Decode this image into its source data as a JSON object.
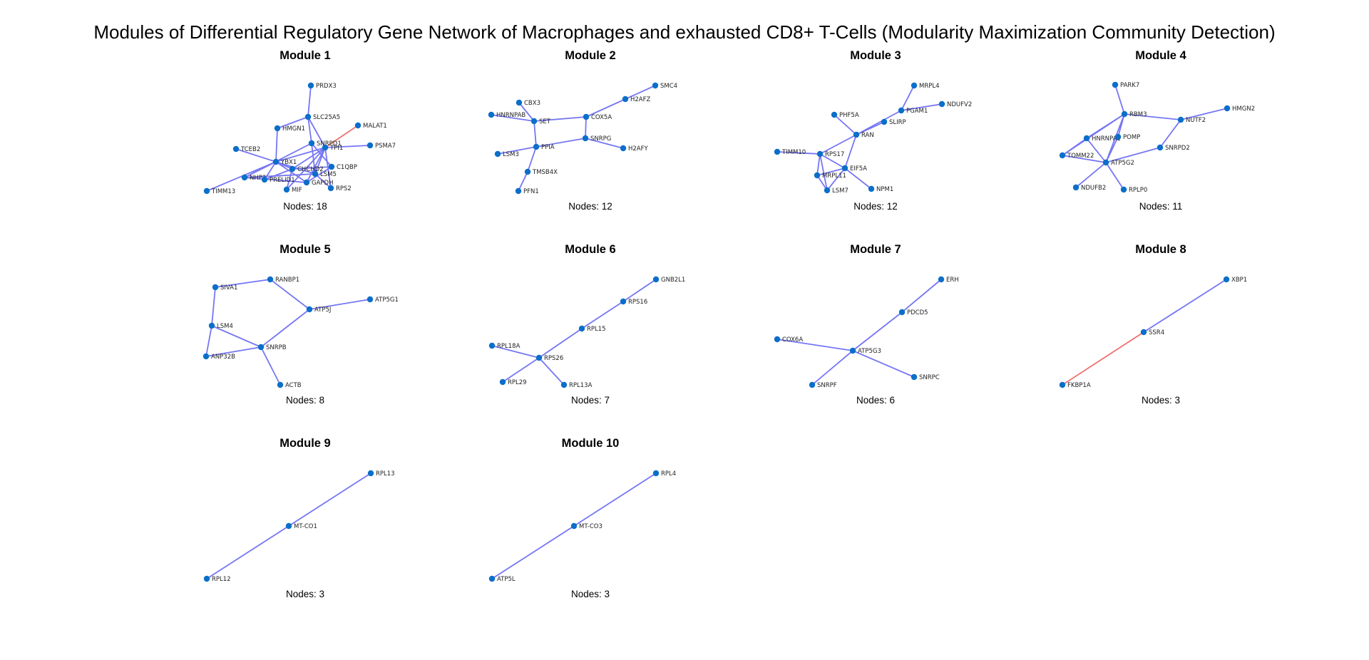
{
  "title": "Modules of Differential Regulatory Gene Network of Macrophages and exhausted CD8+ T-Cells (Modularity Maximization Community Detection)",
  "colors": {
    "node": "#0b6fc9",
    "edge_positive": "#7676f4",
    "edge_negative": "#f07070"
  },
  "modules": [
    {
      "title": "Module 1",
      "nodes_label": "Nodes: 18",
      "nodes": [
        "PRDX3",
        "SLC25A5",
        "MALAT1",
        "HMGN1",
        "SNRPD1",
        "TPI1",
        "PSMA7",
        "TCEB2",
        "YBX1",
        "C1QBP",
        "CHCHD2",
        "LSM5",
        "NHP2",
        "PRELID1",
        "GAPDH",
        "TIMM13",
        "MIF",
        "RPS2"
      ],
      "edges": [
        {
          "source": "PRDX3",
          "target": "SLC25A5",
          "sign": "positive"
        },
        {
          "source": "SLC25A5",
          "target": "HMGN1",
          "sign": "positive"
        },
        {
          "source": "SLC25A5",
          "target": "SNRPD1",
          "sign": "positive"
        },
        {
          "source": "SLC25A5",
          "target": "TPI1",
          "sign": "positive"
        },
        {
          "source": "MALAT1",
          "target": "TPI1",
          "sign": "negative"
        },
        {
          "source": "HMGN1",
          "target": "YBX1",
          "sign": "positive"
        },
        {
          "source": "TPI1",
          "target": "PSMA7",
          "sign": "positive"
        },
        {
          "source": "TPI1",
          "target": "YBX1",
          "sign": "positive"
        },
        {
          "source": "TPI1",
          "target": "CHCHD2",
          "sign": "positive"
        },
        {
          "source": "TPI1",
          "target": "GAPDH",
          "sign": "positive"
        },
        {
          "source": "TPI1",
          "target": "MIF",
          "sign": "positive"
        },
        {
          "source": "TPI1",
          "target": "RPS2",
          "sign": "positive"
        },
        {
          "source": "TPI1",
          "target": "LSM5",
          "sign": "positive"
        },
        {
          "source": "SNRPD1",
          "target": "NHP2",
          "sign": "positive"
        },
        {
          "source": "SNRPD1",
          "target": "LSM5",
          "sign": "positive"
        },
        {
          "source": "SNRPD1",
          "target": "C1QBP",
          "sign": "positive"
        },
        {
          "source": "TCEB2",
          "target": "YBX1",
          "sign": "positive"
        },
        {
          "source": "YBX1",
          "target": "CHCHD2",
          "sign": "positive"
        },
        {
          "source": "YBX1",
          "target": "NHP2",
          "sign": "positive"
        },
        {
          "source": "YBX1",
          "target": "PRELID1",
          "sign": "positive"
        },
        {
          "source": "YBX1",
          "target": "TIMM13",
          "sign": "positive"
        },
        {
          "source": "YBX1",
          "target": "LSM5",
          "sign": "positive"
        },
        {
          "source": "YBX1",
          "target": "GAPDH",
          "sign": "positive"
        },
        {
          "source": "CHCHD2",
          "target": "C1QBP",
          "sign": "positive"
        },
        {
          "source": "CHCHD2",
          "target": "MIF",
          "sign": "positive"
        },
        {
          "source": "CHCHD2",
          "target": "PRELID1",
          "sign": "positive"
        },
        {
          "source": "C1QBP",
          "target": "GAPDH",
          "sign": "positive"
        },
        {
          "source": "LSM5",
          "target": "NHP2",
          "sign": "positive"
        },
        {
          "source": "LSM5",
          "target": "RPS2",
          "sign": "positive"
        },
        {
          "source": "GAPDH",
          "target": "NHP2",
          "sign": "positive"
        }
      ]
    },
    {
      "title": "Module 2",
      "nodes_label": "Nodes: 12",
      "nodes": [
        "SMC4",
        "H2AFZ",
        "CBX3",
        "HNRNPAB",
        "SET",
        "COX5A",
        "SNRPG",
        "PPIA",
        "H2AFY",
        "LSM3",
        "TMSB4X",
        "PFN1"
      ],
      "edges": [
        {
          "source": "SMC4",
          "target": "H2AFZ",
          "sign": "positive"
        },
        {
          "source": "H2AFZ",
          "target": "COX5A",
          "sign": "positive"
        },
        {
          "source": "CBX3",
          "target": "SET",
          "sign": "positive"
        },
        {
          "source": "HNRNPAB",
          "target": "SET",
          "sign": "positive"
        },
        {
          "source": "SET",
          "target": "COX5A",
          "sign": "positive"
        },
        {
          "source": "SET",
          "target": "PPIA",
          "sign": "positive"
        },
        {
          "source": "COX5A",
          "target": "SNRPG",
          "sign": "positive"
        },
        {
          "source": "SNRPG",
          "target": "PPIA",
          "sign": "positive"
        },
        {
          "source": "SNRPG",
          "target": "H2AFY",
          "sign": "positive"
        },
        {
          "source": "PPIA",
          "target": "LSM3",
          "sign": "positive"
        },
        {
          "source": "PPIA",
          "target": "TMSB4X",
          "sign": "positive"
        },
        {
          "source": "TMSB4X",
          "target": "PFN1",
          "sign": "positive"
        }
      ]
    },
    {
      "title": "Module 3",
      "nodes_label": "Nodes: 12",
      "nodes": [
        "MRPL4",
        "NDUFV2",
        "PGAM1",
        "PHF5A",
        "SLIRP",
        "RAN",
        "TIMM10",
        "RPS17",
        "EIF5A",
        "MRPL11",
        "LSM7",
        "NPM1"
      ],
      "edges": [
        {
          "source": "MRPL4",
          "target": "PGAM1",
          "sign": "positive"
        },
        {
          "source": "NDUFV2",
          "target": "PGAM1",
          "sign": "positive"
        },
        {
          "source": "PGAM1",
          "target": "RAN",
          "sign": "positive"
        },
        {
          "source": "SLIRP",
          "target": "RAN",
          "sign": "positive"
        },
        {
          "source": "PHF5A",
          "target": "RAN",
          "sign": "positive"
        },
        {
          "source": "RAN",
          "target": "RPS17",
          "sign": "positive"
        },
        {
          "source": "RAN",
          "target": "EIF5A",
          "sign": "positive"
        },
        {
          "source": "TIMM10",
          "target": "RPS17",
          "sign": "positive"
        },
        {
          "source": "RPS17",
          "target": "EIF5A",
          "sign": "positive"
        },
        {
          "source": "RPS17",
          "target": "MRPL11",
          "sign": "positive"
        },
        {
          "source": "RPS17",
          "target": "LSM7",
          "sign": "positive"
        },
        {
          "source": "EIF5A",
          "target": "MRPL11",
          "sign": "positive"
        },
        {
          "source": "EIF5A",
          "target": "LSM7",
          "sign": "positive"
        },
        {
          "source": "EIF5A",
          "target": "NPM1",
          "sign": "positive"
        },
        {
          "source": "MRPL11",
          "target": "LSM7",
          "sign": "positive"
        }
      ]
    },
    {
      "title": "Module 4",
      "nodes_label": "Nodes: 11",
      "nodes": [
        "PARK7",
        "HMGN2",
        "RBM3",
        "NUTF2",
        "HNRNPA1",
        "POMP",
        "TOMM22",
        "SNRPD2",
        "ATP5G2",
        "NDUFB2",
        "RPLP0"
      ],
      "edges": [
        {
          "source": "PARK7",
          "target": "RBM3",
          "sign": "positive"
        },
        {
          "source": "RBM3",
          "target": "NUTF2",
          "sign": "positive"
        },
        {
          "source": "NUTF2",
          "target": "HMGN2",
          "sign": "positive"
        },
        {
          "source": "RBM3",
          "target": "HNRNPA1",
          "sign": "positive"
        },
        {
          "source": "RBM3",
          "target": "POMP",
          "sign": "positive"
        },
        {
          "source": "RBM3",
          "target": "TOMM22",
          "sign": "positive"
        },
        {
          "source": "RBM3",
          "target": "ATP5G2",
          "sign": "positive"
        },
        {
          "source": "NUTF2",
          "target": "SNRPD2",
          "sign": "positive"
        },
        {
          "source": "HNRNPA1",
          "target": "TOMM22",
          "sign": "positive"
        },
        {
          "source": "HNRNPA1",
          "target": "ATP5G2",
          "sign": "positive"
        },
        {
          "source": "POMP",
          "target": "ATP5G2",
          "sign": "positive"
        },
        {
          "source": "TOMM22",
          "target": "ATP5G2",
          "sign": "positive"
        },
        {
          "source": "SNRPD2",
          "target": "ATP5G2",
          "sign": "positive"
        },
        {
          "source": "ATP5G2",
          "target": "NDUFB2",
          "sign": "positive"
        },
        {
          "source": "ATP5G2",
          "target": "RPLP0",
          "sign": "positive"
        }
      ]
    },
    {
      "title": "Module 5",
      "nodes_label": "Nodes: 8",
      "nodes": [
        "SIVA1",
        "RANBP1",
        "ATP5J",
        "ATP5G1",
        "LSM4",
        "SNRPB",
        "ANP32B",
        "ACTB"
      ],
      "edges": [
        {
          "source": "SIVA1",
          "target": "RANBP1",
          "sign": "positive"
        },
        {
          "source": "SIVA1",
          "target": "LSM4",
          "sign": "positive"
        },
        {
          "source": "RANBP1",
          "target": "ATP5J",
          "sign": "positive"
        },
        {
          "source": "ATP5J",
          "target": "ATP5G1",
          "sign": "positive"
        },
        {
          "source": "ATP5J",
          "target": "SNRPB",
          "sign": "positive"
        },
        {
          "source": "LSM4",
          "target": "SNRPB",
          "sign": "positive"
        },
        {
          "source": "LSM4",
          "target": "ANP32B",
          "sign": "positive"
        },
        {
          "source": "ANP32B",
          "target": "SNRPB",
          "sign": "positive"
        },
        {
          "source": "SNRPB",
          "target": "ACTB",
          "sign": "positive"
        }
      ]
    },
    {
      "title": "Module 6",
      "nodes_label": "Nodes: 7",
      "nodes": [
        "GNB2L1",
        "RPS16",
        "RPL15",
        "RPL18A",
        "RPS26",
        "RPL29",
        "RPL13A"
      ],
      "edges": [
        {
          "source": "GNB2L1",
          "target": "RPS16",
          "sign": "positive"
        },
        {
          "source": "RPS16",
          "target": "RPL15",
          "sign": "positive"
        },
        {
          "source": "RPL15",
          "target": "RPS26",
          "sign": "positive"
        },
        {
          "source": "RPL18A",
          "target": "RPS26",
          "sign": "positive"
        },
        {
          "source": "RPS26",
          "target": "RPL29",
          "sign": "positive"
        },
        {
          "source": "RPS26",
          "target": "RPL13A",
          "sign": "positive"
        }
      ]
    },
    {
      "title": "Module 7",
      "nodes_label": "Nodes: 6",
      "nodes": [
        "ERH",
        "PDCD5",
        "COX6A",
        "ATP5G3",
        "SNRPC",
        "SNRPF"
      ],
      "edges": [
        {
          "source": "ERH",
          "target": "PDCD5",
          "sign": "positive"
        },
        {
          "source": "PDCD5",
          "target": "ATP5G3",
          "sign": "positive"
        },
        {
          "source": "COX6A",
          "target": "ATP5G3",
          "sign": "positive"
        },
        {
          "source": "ATP5G3",
          "target": "SNRPC",
          "sign": "positive"
        },
        {
          "source": "ATP5G3",
          "target": "SNRPF",
          "sign": "positive"
        }
      ]
    },
    {
      "title": "Module 8",
      "nodes_label": "Nodes: 3",
      "nodes": [
        "XBP1",
        "SSR4",
        "FKBP1A"
      ],
      "edges": [
        {
          "source": "XBP1",
          "target": "SSR4",
          "sign": "positive"
        },
        {
          "source": "SSR4",
          "target": "FKBP1A",
          "sign": "negative"
        }
      ]
    },
    {
      "title": "Module 9",
      "nodes_label": "Nodes: 3",
      "nodes": [
        "RPL13",
        "MT-CO1",
        "RPL12"
      ],
      "edges": [
        {
          "source": "RPL13",
          "target": "MT-CO1",
          "sign": "positive"
        },
        {
          "source": "MT-CO1",
          "target": "RPL12",
          "sign": "positive"
        }
      ]
    },
    {
      "title": "Module 10",
      "nodes_label": "Nodes: 3",
      "nodes": [
        "RPL4",
        "MT-CO3",
        "ATP5L"
      ],
      "edges": [
        {
          "source": "RPL4",
          "target": "MT-CO3",
          "sign": "positive"
        },
        {
          "source": "MT-CO3",
          "target": "ATP5L",
          "sign": "positive"
        }
      ]
    }
  ]
}
